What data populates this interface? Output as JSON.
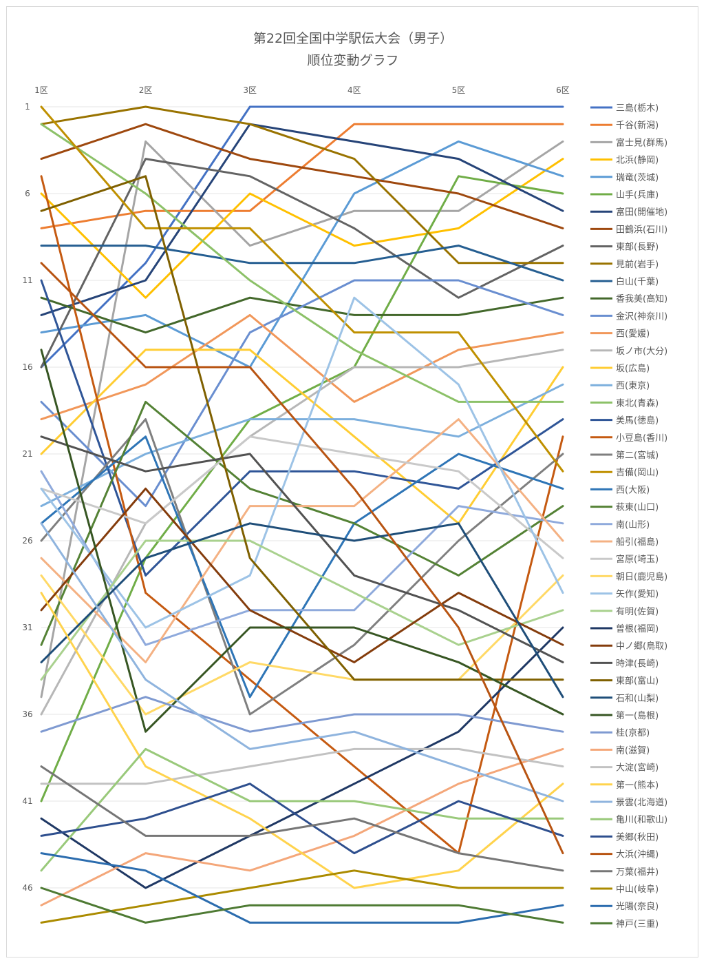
{
  "chart_data": {
    "type": "line",
    "title": "第22回全国中学駅伝大会（男子）",
    "subtitle": "順位変動グラフ",
    "categories": [
      "1区",
      "2区",
      "3区",
      "4区",
      "5区",
      "6区"
    ],
    "y_tick_labels": [
      "1",
      "6",
      "11",
      "16",
      "21",
      "26",
      "31",
      "36",
      "41",
      "46"
    ],
    "ylim": [
      1,
      48
    ],
    "y_reversed": true,
    "grid": true,
    "legend_position": "right",
    "series": [
      {
        "name": "三島(栃木)",
        "color": "#4472C4",
        "values": [
          16,
          10,
          1,
          1,
          1,
          1
        ]
      },
      {
        "name": "千谷(新潟)",
        "color": "#ED7D31",
        "values": [
          8,
          7,
          7,
          2,
          2,
          2
        ]
      },
      {
        "name": "富士見(群馬)",
        "color": "#A5A5A5",
        "values": [
          35,
          3,
          9,
          7,
          7,
          3
        ]
      },
      {
        "name": "北浜(静岡)",
        "color": "#FFC000",
        "values": [
          6,
          12,
          6,
          9,
          8,
          4
        ]
      },
      {
        "name": "瑞竜(茨城)",
        "color": "#5B9BD5",
        "values": [
          14,
          13,
          16,
          6,
          3,
          5
        ]
      },
      {
        "name": "山手(兵庫)",
        "color": "#70AD47",
        "values": [
          41,
          27,
          19,
          16,
          5,
          6
        ]
      },
      {
        "name": "富田(開催地)",
        "color": "#264478",
        "values": [
          13,
          11,
          2,
          3,
          4,
          7
        ]
      },
      {
        "name": "田鶴浜(石川)",
        "color": "#9E480E",
        "values": [
          4,
          2,
          4,
          5,
          6,
          8
        ]
      },
      {
        "name": "東部(長野)",
        "color": "#636363",
        "values": [
          16,
          4,
          5,
          8,
          12,
          9
        ]
      },
      {
        "name": "見前(岩手)",
        "color": "#997300",
        "values": [
          2,
          1,
          2,
          4,
          10,
          10
        ]
      },
      {
        "name": "白山(千葉)",
        "color": "#255E91",
        "values": [
          9,
          9,
          10,
          10,
          9,
          11
        ]
      },
      {
        "name": "香我美(高知)",
        "color": "#43682B",
        "values": [
          12,
          14,
          12,
          13,
          13,
          12
        ]
      },
      {
        "name": "金沢(神奈川)",
        "color": "#698ED0",
        "values": [
          18,
          24,
          14,
          11,
          11,
          13
        ]
      },
      {
        "name": "西(愛媛)",
        "color": "#F1975A",
        "values": [
          19,
          17,
          13,
          18,
          15,
          14
        ]
      },
      {
        "name": "坂ノ市(大分)",
        "color": "#B7B7B7",
        "values": [
          36,
          25,
          20,
          16,
          16,
          15
        ]
      },
      {
        "name": "坂(広島)",
        "color": "#FFCD33",
        "values": [
          21,
          15,
          15,
          20,
          25,
          16
        ]
      },
      {
        "name": "西(東京)",
        "color": "#7CAFDD",
        "values": [
          24,
          21,
          19,
          19,
          20,
          17
        ]
      },
      {
        "name": "東北(青森)",
        "color": "#8CC168",
        "values": [
          2,
          6,
          11,
          15,
          18,
          18
        ]
      },
      {
        "name": "美馬(徳島)",
        "color": "#2F5597",
        "values": [
          11,
          28,
          22,
          22,
          23,
          19
        ]
      },
      {
        "name": "小豆島(香川)",
        "color": "#C55A11",
        "values": [
          5,
          29,
          34,
          39,
          44,
          20
        ]
      },
      {
        "name": "第二(宮城)",
        "color": "#7F7F7F",
        "values": [
          26,
          19,
          36,
          32,
          26,
          21
        ]
      },
      {
        "name": "吉備(岡山)",
        "color": "#BF9000",
        "values": [
          1,
          8,
          8,
          14,
          14,
          22
        ]
      },
      {
        "name": "西(大阪)",
        "color": "#2E75B6",
        "values": [
          25,
          20,
          35,
          25,
          21,
          23
        ]
      },
      {
        "name": "萩東(山口)",
        "color": "#548235",
        "values": [
          32,
          18,
          23,
          25,
          28,
          24
        ]
      },
      {
        "name": "南(山形)",
        "color": "#8FAADC",
        "values": [
          22,
          32,
          30,
          30,
          24,
          25
        ]
      },
      {
        "name": "船引(福島)",
        "color": "#F4B183",
        "values": [
          27,
          33,
          24,
          24,
          19,
          26
        ]
      },
      {
        "name": "宮原(埼玉)",
        "color": "#C9C9C9",
        "values": [
          23,
          25,
          20,
          21,
          22,
          27
        ]
      },
      {
        "name": "朝日(鹿児島)",
        "color": "#FFD966",
        "values": [
          28,
          36,
          33,
          34,
          34,
          28
        ]
      },
      {
        "name": "矢作(愛知)",
        "color": "#9DC3E6",
        "values": [
          23,
          31,
          28,
          12,
          17,
          29
        ]
      },
      {
        "name": "有明(佐賀)",
        "color": "#A9D18E",
        "values": [
          34,
          26,
          26,
          29,
          32,
          30
        ]
      },
      {
        "name": "曽根(福岡)",
        "color": "#1F3864",
        "values": [
          42,
          46,
          43,
          40,
          37,
          31
        ]
      },
      {
        "name": "中ノ郷(鳥取)",
        "color": "#843C0C",
        "values": [
          30,
          23,
          30,
          33,
          29,
          32
        ]
      },
      {
        "name": "時津(長崎)",
        "color": "#525252",
        "values": [
          20,
          22,
          21,
          28,
          30,
          33
        ]
      },
      {
        "name": "東部(富山)",
        "color": "#7F6000",
        "values": [
          7,
          5,
          27,
          34,
          34,
          34
        ]
      },
      {
        "name": "石和(山梨)",
        "color": "#1F4E79",
        "values": [
          33,
          27,
          25,
          26,
          25,
          35
        ]
      },
      {
        "name": "第一(島根)",
        "color": "#375623",
        "values": [
          15,
          37,
          31,
          31,
          33,
          36
        ]
      },
      {
        "name": "桂(京都)",
        "color": "#7F9AD1",
        "values": [
          37,
          35,
          37,
          36,
          36,
          37
        ]
      },
      {
        "name": "南(滋賀)",
        "color": "#F4A77A",
        "values": [
          47,
          44,
          45,
          43,
          40,
          38
        ]
      },
      {
        "name": "大淀(宮崎)",
        "color": "#C2C2C2",
        "values": [
          40,
          40,
          39,
          38,
          38,
          39
        ]
      },
      {
        "name": "第一(熊本)",
        "color": "#FFD34D",
        "values": [
          29,
          39,
          42,
          46,
          45,
          40
        ]
      },
      {
        "name": "景雲(北海道)",
        "color": "#8FB4DE",
        "values": [
          25,
          34,
          38,
          37,
          39,
          41
        ]
      },
      {
        "name": "亀川(和歌山)",
        "color": "#99C97A",
        "values": [
          45,
          38,
          41,
          41,
          42,
          42
        ]
      },
      {
        "name": "美郷(秋田)",
        "color": "#2E4F8E",
        "values": [
          43,
          42,
          40,
          44,
          41,
          43
        ]
      },
      {
        "name": "大浜(沖縄)",
        "color": "#B85412",
        "values": [
          10,
          16,
          16,
          23,
          31,
          44
        ]
      },
      {
        "name": "万葉(福井)",
        "color": "#767676",
        "values": [
          39,
          43,
          43,
          42,
          44,
          45
        ]
      },
      {
        "name": "中山(岐阜)",
        "color": "#AB8B00",
        "values": [
          48,
          47,
          46,
          45,
          46,
          46
        ]
      },
      {
        "name": "光陽(奈良)",
        "color": "#2B6CAE",
        "values": [
          44,
          45,
          48,
          48,
          48,
          47
        ]
      },
      {
        "name": "神戸(三重)",
        "color": "#4E7A33",
        "values": [
          46,
          48,
          47,
          47,
          47,
          48
        ]
      }
    ]
  }
}
